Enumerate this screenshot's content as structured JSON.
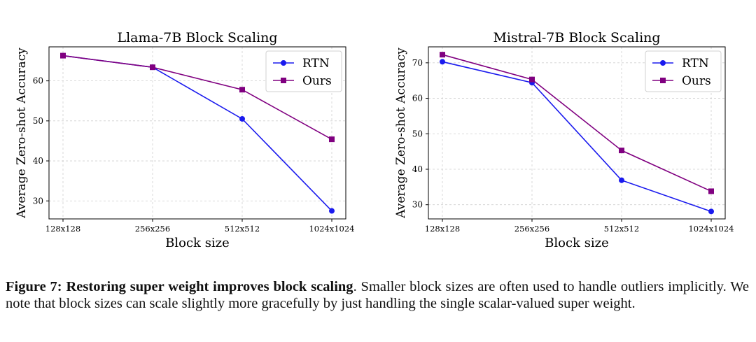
{
  "chart_data": [
    {
      "type": "line",
      "title": "Llama-7B Block Scaling",
      "xlabel": "Block size",
      "ylabel": "Average Zero-shot Accuracy",
      "categories": [
        "128x128",
        "256x256",
        "512x512",
        "1024x1024"
      ],
      "yticks": [
        30,
        40,
        50,
        60
      ],
      "ylim": [
        25.5,
        68.5
      ],
      "grid": true,
      "legend_position": "top-right",
      "series": [
        {
          "name": "RTN",
          "color": "#1a1aee",
          "marker": "circle",
          "values": [
            66.3,
            63.4,
            50.5,
            27.5
          ]
        },
        {
          "name": "Ours",
          "color": "#800080",
          "marker": "square",
          "values": [
            66.3,
            63.4,
            57.8,
            45.4
          ]
        }
      ]
    },
    {
      "type": "line",
      "title": "Mistral-7B Block Scaling",
      "xlabel": "Block size",
      "ylabel": "Average Zero-shot Accuracy",
      "categories": [
        "128x128",
        "256x256",
        "512x512",
        "1024x1024"
      ],
      "yticks": [
        30,
        40,
        50,
        60,
        70
      ],
      "ylim": [
        26,
        74.5
      ],
      "grid": true,
      "legend_position": "top-right",
      "series": [
        {
          "name": "RTN",
          "color": "#1a1aee",
          "marker": "circle",
          "values": [
            70.3,
            64.4,
            36.9,
            28.1
          ]
        },
        {
          "name": "Ours",
          "color": "#800080",
          "marker": "square",
          "values": [
            72.3,
            65.3,
            45.3,
            33.8
          ]
        }
      ]
    }
  ],
  "caption": {
    "label": "Figure 7:",
    "bold_title": "Restoring super weight improves block scaling",
    "text": ". Smaller block sizes are often used to handle outliers implicitly. We note that block sizes can scale slightly more gracefully by just handling the single scalar-valued super weight."
  }
}
